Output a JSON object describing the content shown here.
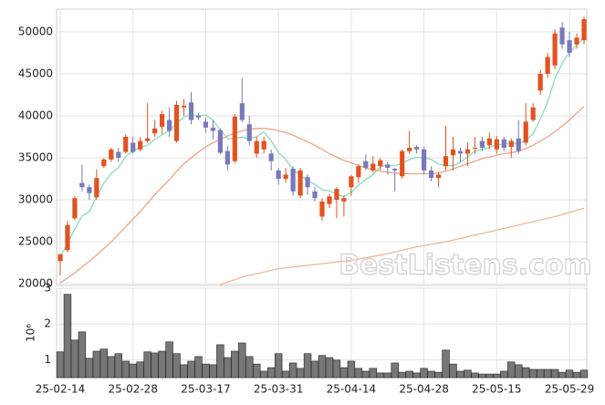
{
  "chart_data": {
    "type": "candlestick",
    "watermark": "BestListens.com",
    "categories": [
      "25-02-14",
      null,
      null,
      null,
      null,
      null,
      null,
      null,
      null,
      null,
      "25-02-28",
      null,
      null,
      null,
      null,
      null,
      null,
      null,
      null,
      null,
      "25-03-17",
      null,
      null,
      null,
      null,
      null,
      null,
      null,
      null,
      null,
      "25-03-31",
      null,
      null,
      null,
      null,
      null,
      null,
      null,
      null,
      null,
      "25-04-14",
      null,
      null,
      null,
      null,
      null,
      null,
      null,
      null,
      null,
      "25-04-28",
      null,
      null,
      null,
      null,
      null,
      null,
      null,
      null,
      null,
      "25-05-15",
      null,
      null,
      null,
      null,
      null,
      null,
      null,
      null,
      null,
      "25-05-29",
      null,
      null
    ],
    "open": [
      22700,
      24000,
      27800,
      32000,
      31500,
      30300,
      34000,
      34800,
      35700,
      35700,
      36800,
      36000,
      37000,
      37900,
      38700,
      39500,
      37000,
      41000,
      41600,
      40000,
      39300,
      38600,
      38300,
      35800,
      34600,
      41500,
      39000,
      35500,
      36000,
      35500,
      33500,
      32500,
      33700,
      30500,
      32700,
      31000,
      28000,
      29500,
      30000,
      29800,
      31500,
      32700,
      34600,
      33500,
      34000,
      34200,
      33700,
      32800,
      35800,
      36300,
      36000,
      33500,
      32600,
      34000,
      35300,
      35800,
      35500,
      36100,
      37000,
      36500,
      36000,
      37200,
      36300,
      37300,
      36800,
      39500,
      43000,
      45000,
      46000,
      50500,
      49000,
      48500,
      49000
    ],
    "high": [
      23600,
      27500,
      30400,
      34200,
      31800,
      33600,
      35000,
      36200,
      36200,
      37800,
      37500,
      37500,
      41500,
      39500,
      40600,
      41000,
      41800,
      42000,
      42800,
      40300,
      39800,
      39500,
      38500,
      36400,
      40200,
      44500,
      40000,
      37500,
      37500,
      36000,
      33800,
      33800,
      34000,
      33800,
      33000,
      31500,
      30200,
      30700,
      31500,
      30500,
      33000,
      34200,
      35400,
      35200,
      35000,
      34500,
      33800,
      36000,
      38200,
      36500,
      36300,
      34000,
      33300,
      38800,
      37500,
      36200,
      36800,
      37500,
      37500,
      38000,
      37600,
      37500,
      37300,
      39500,
      41500,
      41500,
      45500,
      47500,
      50300,
      51200,
      50000,
      49800,
      51800
    ],
    "low": [
      21000,
      23800,
      27600,
      31000,
      30000,
      30000,
      33800,
      34500,
      34500,
      35500,
      35500,
      35800,
      36800,
      37500,
      37800,
      37500,
      36800,
      40000,
      39000,
      39500,
      38000,
      37200,
      35400,
      33500,
      34400,
      39200,
      36500,
      35000,
      35500,
      33500,
      31800,
      32000,
      30500,
      30200,
      30600,
      29800,
      27500,
      29000,
      27800,
      28000,
      30500,
      32000,
      33500,
      33200,
      33500,
      33000,
      31000,
      32500,
      35500,
      35500,
      33000,
      32200,
      31500,
      33500,
      33500,
      34500,
      34000,
      35500,
      35800,
      36000,
      35500,
      35800,
      35000,
      35500,
      36500,
      39300,
      42500,
      44500,
      45500,
      48000,
      47000,
      48000,
      48500
    ],
    "close": [
      23500,
      27000,
      30200,
      31500,
      30800,
      32600,
      34800,
      36000,
      35000,
      37500,
      35700,
      37000,
      37300,
      38500,
      40200,
      38200,
      41300,
      41200,
      39500,
      39800,
      38600,
      38200,
      35600,
      34200,
      39900,
      39500,
      37000,
      37000,
      37000,
      34600,
      32500,
      33000,
      31000,
      33500,
      31500,
      30200,
      29800,
      30400,
      31300,
      30200,
      32800,
      34000,
      33800,
      34300,
      34700,
      33800,
      33500,
      35800,
      36200,
      36000,
      33500,
      32600,
      33000,
      35200,
      36000,
      35500,
      36000,
      36200,
      36200,
      37300,
      37200,
      36200,
      37000,
      35800,
      39300,
      41000,
      45000,
      47000,
      49800,
      48500,
      47500,
      49300,
      51500
    ],
    "up_color": "#e2521f",
    "down_color": "#7878bb",
    "ma_lines": [
      {
        "color": "#86dcbf",
        "values": [
          23200,
          24800,
          26500,
          28100,
          28600,
          30420,
          31980,
          33140,
          33840,
          35180,
          35800,
          36240,
          36500,
          37200,
          37740,
          38240,
          39100,
          39880,
          40080,
          40000,
          40080,
          39460,
          38340,
          37280,
          37300,
          37480,
          37240,
          37520,
          38080,
          37020,
          35620,
          34820,
          33620,
          32920,
          32300,
          31840,
          31200,
          31080,
          30640,
          30380,
          30900,
          31740,
          32420,
          33020,
          33920,
          34120,
          34020,
          34420,
          34800,
          35060,
          35000,
          34820,
          34260,
          34060,
          34060,
          34460,
          35140,
          35780,
          35980,
          36240,
          36580,
          36620,
          36780,
          36700,
          37100,
          37860,
          39620,
          41620,
          44420,
          46260,
          47560,
          48420,
          49320
        ]
      },
      {
        "color": "#eea487",
        "values": [
          20100,
          20700,
          21300,
          22000,
          22700,
          23400,
          24200,
          25000,
          25900,
          26800,
          27700,
          28600,
          29600,
          30600,
          31500,
          32400,
          33400,
          34300,
          35000,
          35700,
          36300,
          36800,
          37200,
          37600,
          37900,
          38200,
          38400,
          38500,
          38500,
          38400,
          38200,
          38000,
          37700,
          37300,
          36900,
          36500,
          36000,
          35500,
          35100,
          34700,
          34400,
          34100,
          33800,
          33600,
          33400,
          33300,
          33200,
          33100,
          33100,
          33100,
          33100,
          33100,
          33200,
          33400,
          33700,
          34000,
          34300,
          34600,
          34900,
          35100,
          35300,
          35500,
          35600,
          35800,
          36100,
          36500,
          37000,
          37500,
          38100,
          38800,
          39500,
          40300,
          41100
        ]
      },
      {
        "color": "#efb797",
        "values": [
          null,
          null,
          null,
          null,
          null,
          null,
          null,
          null,
          null,
          null,
          null,
          null,
          null,
          null,
          null,
          null,
          null,
          null,
          null,
          null,
          null,
          null,
          19900,
          20200,
          20500,
          20800,
          21000,
          21200,
          21400,
          21600,
          21800,
          21900,
          22000,
          22100,
          22200,
          22300,
          22400,
          22500,
          22600,
          22700,
          22800,
          22950,
          23100,
          23250,
          23400,
          23600,
          23800,
          24000,
          24200,
          24400,
          24550,
          24700,
          24850,
          25000,
          25200,
          25400,
          25600,
          25800,
          26000,
          26200,
          26400,
          26600,
          26800,
          27000,
          27200,
          27400,
          27600,
          27800,
          28000,
          28250,
          28500,
          28750,
          29000
        ]
      }
    ],
    "ylim": [
      19800,
      52700
    ],
    "yticks": [
      20000,
      25000,
      30000,
      35000,
      40000,
      45000,
      50000
    ],
    "grid": true,
    "volume": {
      "ylabel": "10⁶",
      "color": "#777777",
      "ylim": [
        0.5,
        3
      ],
      "yticks": [
        1,
        2,
        3
      ],
      "values": [
        1.22,
        2.83,
        1.55,
        1.78,
        1.04,
        1.24,
        1.3,
        1.09,
        1.17,
        0.96,
        0.88,
        0.94,
        1.22,
        1.19,
        1.24,
        1.5,
        1.17,
        0.86,
        0.96,
        1.09,
        0.88,
        0.86,
        1.42,
        1.06,
        1.24,
        1.47,
        1.09,
        0.88,
        0.68,
        0.78,
        1.17,
        0.68,
        0.91,
        0.76,
        1.17,
        0.96,
        1.12,
        1.06,
        0.99,
        0.78,
        0.96,
        0.76,
        0.68,
        0.76,
        0.63,
        0.63,
        0.91,
        0.65,
        0.68,
        0.63,
        0.76,
        0.68,
        0.65,
        1.27,
        0.88,
        0.68,
        0.71,
        0.63,
        0.6,
        0.6,
        0.6,
        0.68,
        0.94,
        0.86,
        0.78,
        0.73,
        0.73,
        0.73,
        0.73,
        0.65,
        0.71,
        0.65,
        0.71
      ]
    }
  }
}
